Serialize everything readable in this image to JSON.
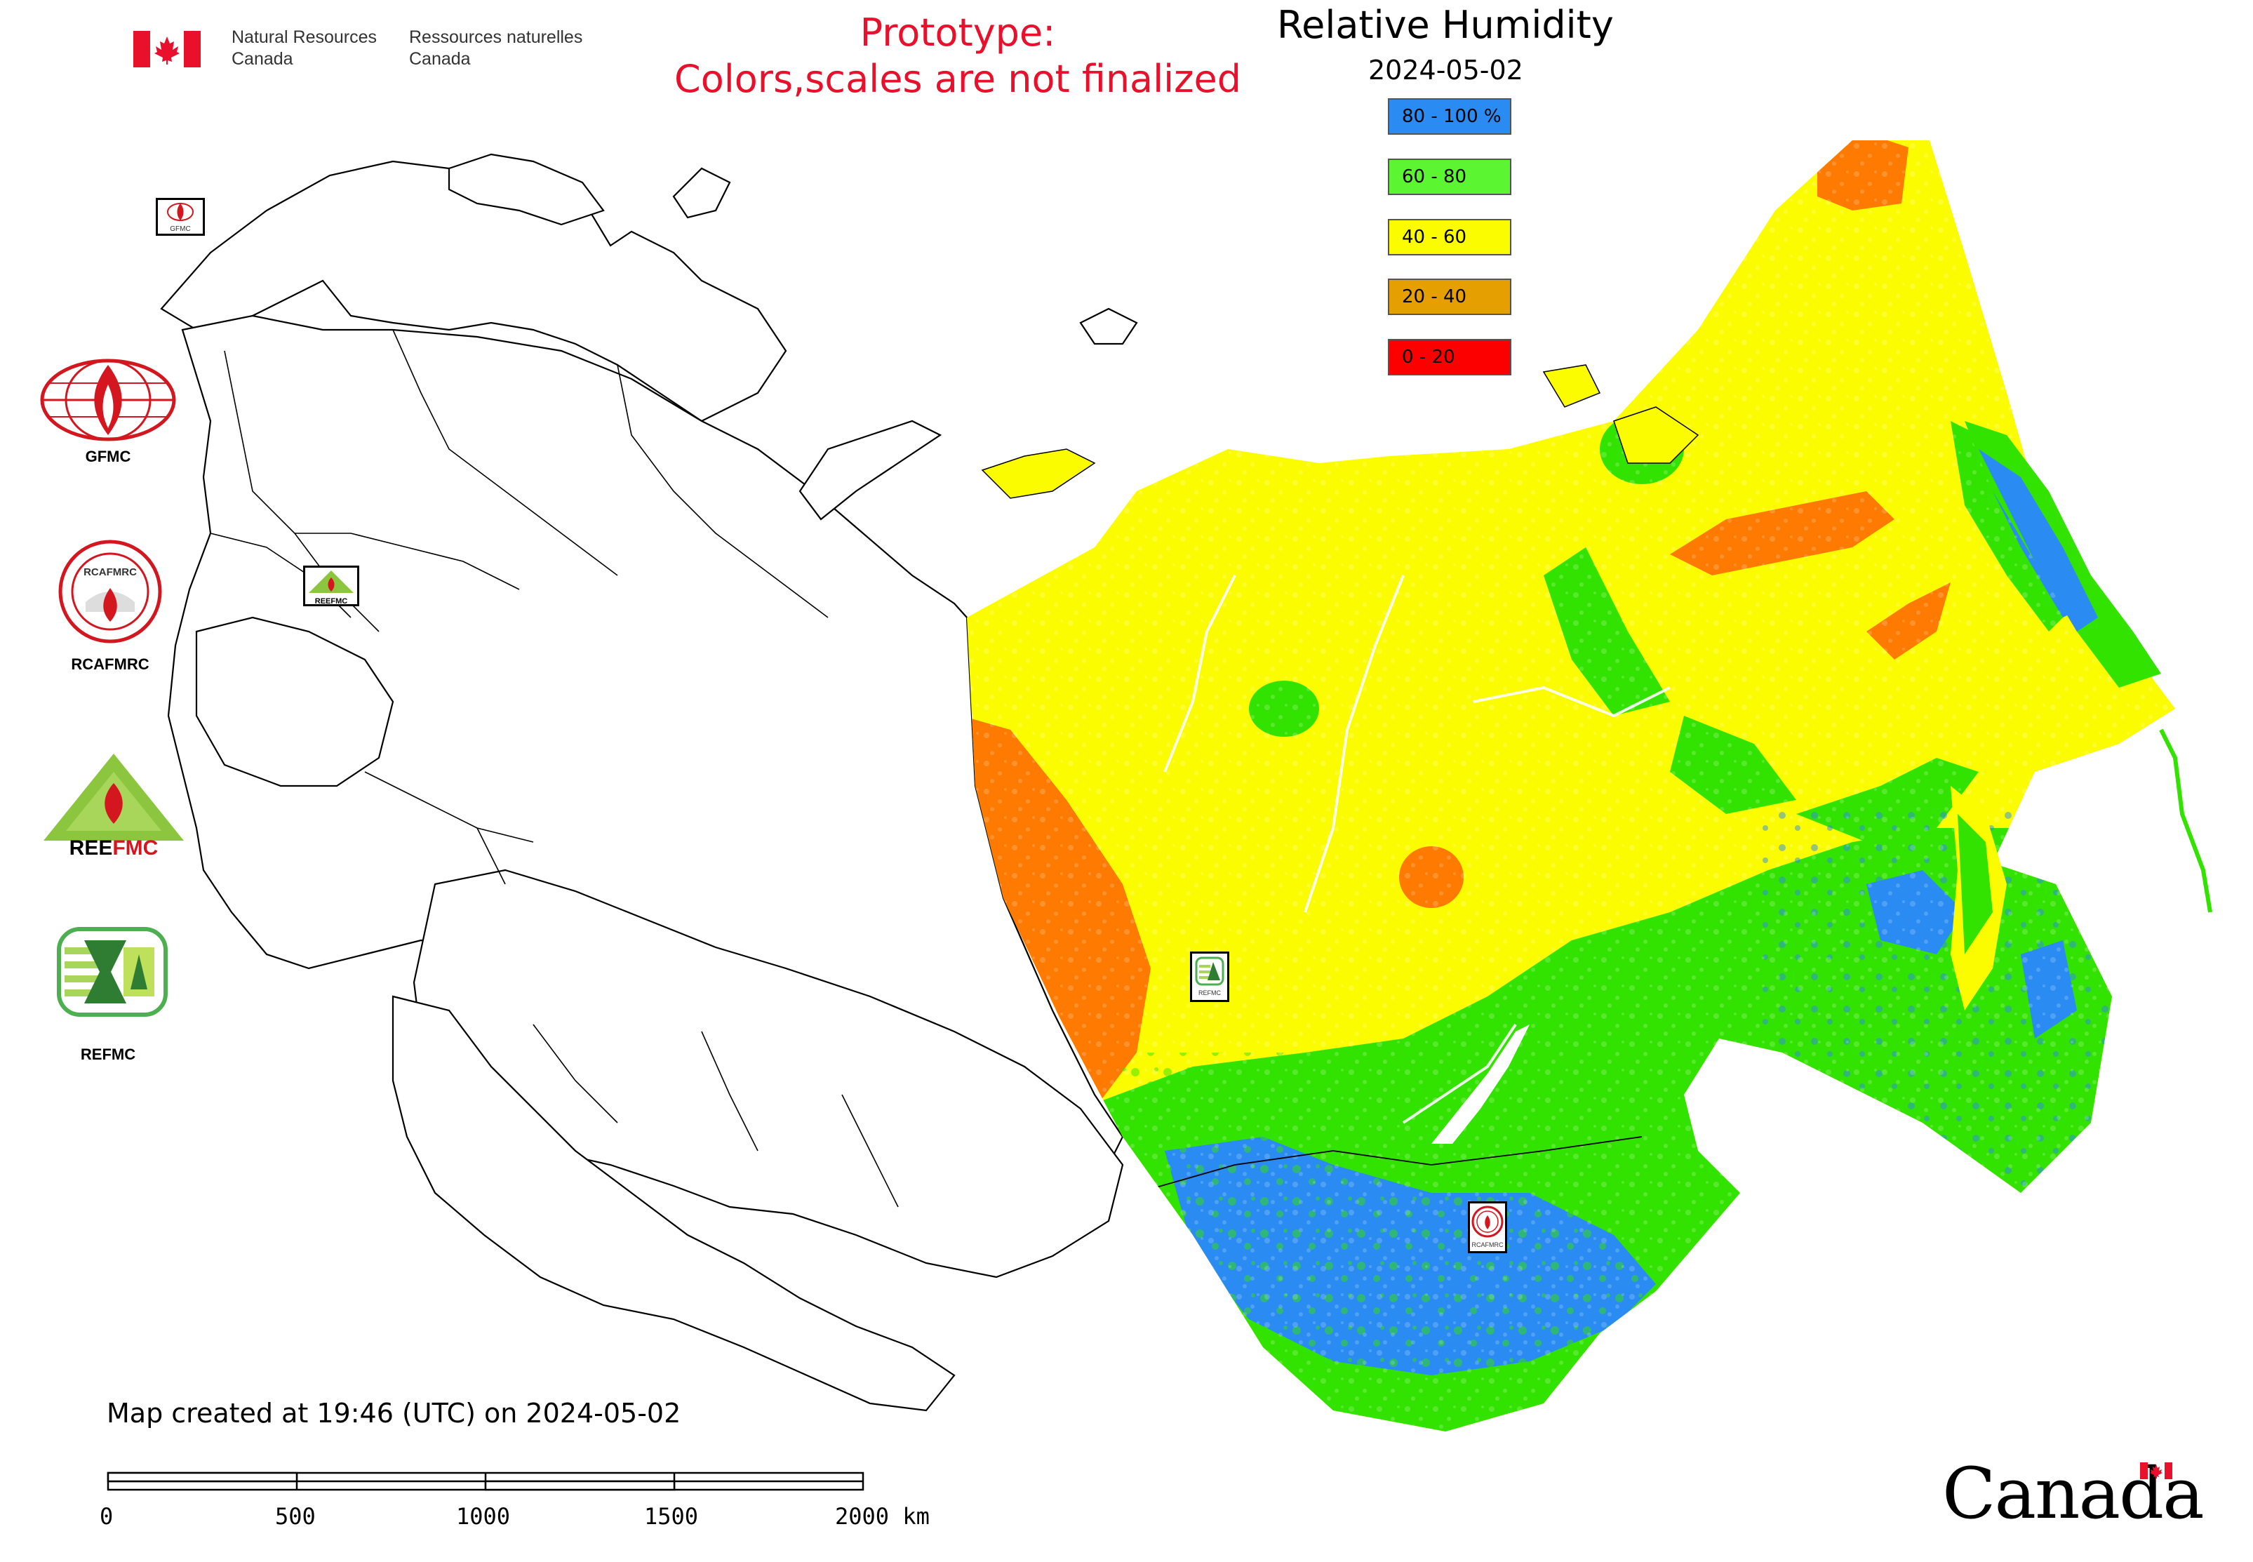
{
  "header": {
    "agency_en_line1": "Natural Resources",
    "agency_en_line2": "Canada",
    "agency_fr_line1": "Ressources naturelles",
    "agency_fr_line2": "Canada",
    "prototype_line1": "Prototype:",
    "prototype_line2": "Colors,scales are not finalized",
    "prototype_color": "#e8102a"
  },
  "map": {
    "title": "Relative Humidity",
    "date": "2024-05-02",
    "created_note": "Map created at 19:46 (UTC) on 2024-05-02"
  },
  "legend": [
    {
      "label": "80 - 100 %",
      "color": "#2a8bf2"
    },
    {
      "label": "60 - 80",
      "color": "#5cf531"
    },
    {
      "label": "40 - 60",
      "color": "#fcfc00"
    },
    {
      "label": "20 - 40",
      "color": "#e5a000"
    },
    {
      "label": "0 - 20",
      "color": "#fc0000"
    }
  ],
  "fire_centers": [
    {
      "label": "GFMC",
      "icon": "gfmc-logo-icon"
    },
    {
      "label": "RCAFMRC",
      "icon": "rcafmrc-logo-icon"
    },
    {
      "label": "REEFMC",
      "icon": "reefmc-logo-icon"
    },
    {
      "label": "REFMC",
      "icon": "refmc-logo-icon"
    }
  ],
  "map_markers": [
    {
      "label": "GFMC",
      "icon": "gfmc-marker-icon"
    },
    {
      "label": "REEFMC",
      "icon": "reefmc-marker-icon"
    },
    {
      "label": "REFMC",
      "icon": "refmc-marker-icon"
    },
    {
      "label": "RCAFMRC",
      "icon": "rcafmrc-marker-icon"
    }
  ],
  "scale_bar": {
    "ticks": [
      "0",
      "500",
      "1000",
      "1500",
      "2000 km"
    ]
  },
  "footer": {
    "wordmark": "Canada"
  },
  "colors": {
    "humidity_blue": "#2a8bf2",
    "humidity_green": "#33e300",
    "humidity_yellow": "#fcfc00",
    "humidity_orange": "#ff7a00",
    "flag_red": "#e8102a"
  }
}
